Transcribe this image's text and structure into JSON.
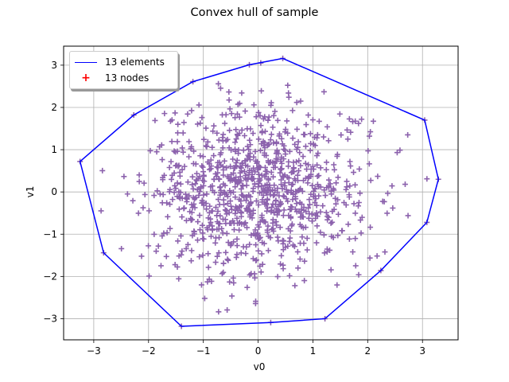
{
  "chart_data": {
    "type": "scatter",
    "title": "Convex hull of sample",
    "xlabel": "v0",
    "ylabel": "v1",
    "xlim": [
      -3.55,
      3.65
    ],
    "ylim": [
      -3.5,
      3.45
    ],
    "xticks": [
      -3,
      -2,
      -1,
      0,
      1,
      2,
      3
    ],
    "yticks": [
      -3,
      -2,
      -1,
      0,
      1,
      2,
      3
    ],
    "xtick_labels": [
      "−3",
      "−2",
      "−1",
      "0",
      "1",
      "2",
      "3"
    ],
    "ytick_labels": [
      "−3",
      "−2",
      "−1",
      "0",
      "1",
      "2",
      "3"
    ],
    "grid": true,
    "legend_position": "upper left",
    "legend": [
      {
        "label": "13 elements",
        "kind": "line",
        "color": "#0000ff"
      },
      {
        "label": "13 nodes",
        "kind": "marker",
        "color": "#ff0000"
      }
    ],
    "series": [
      {
        "name": "sample",
        "kind": "scatter",
        "marker": "+",
        "color": "#8c62ad",
        "distribution": "standard normal 2D",
        "count": 1000,
        "seed": 7
      },
      {
        "name": "13 elements",
        "kind": "polygon",
        "color": "#0000ff",
        "vertices": [
          [
            -3.25,
            0.72
          ],
          [
            -2.27,
            1.82
          ],
          [
            -1.19,
            2.61
          ],
          [
            -0.16,
            3.01
          ],
          [
            0.45,
            3.16
          ],
          [
            3.04,
            1.7
          ],
          [
            3.29,
            0.3
          ],
          [
            3.08,
            -0.72
          ],
          [
            2.24,
            -1.86
          ],
          [
            1.22,
            -3.0
          ],
          [
            0.23,
            -3.09
          ],
          [
            -1.4,
            -3.18
          ],
          [
            -2.82,
            -1.44
          ]
        ]
      }
    ],
    "colors": {
      "grid": "#b0b0b0",
      "hull": "#0000ff",
      "points": "#8c62ad",
      "nodes_legend": "#ff0000"
    }
  }
}
